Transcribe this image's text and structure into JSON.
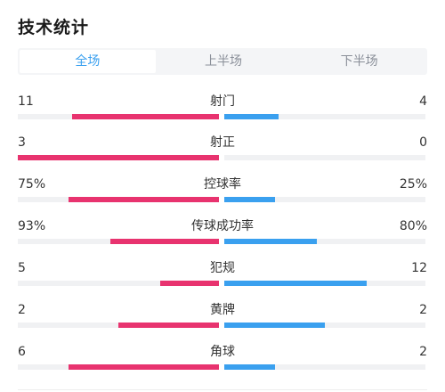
{
  "title": "技术统计",
  "tabs": [
    {
      "label": "全场",
      "active": true
    },
    {
      "label": "上半场",
      "active": false
    },
    {
      "label": "下半场",
      "active": false
    }
  ],
  "colors": {
    "home": "#e8336f",
    "away": "#3aa0ef",
    "track": "#f0f1f3",
    "active_tab": "#3aa0ef"
  },
  "stats": [
    {
      "label": "射门",
      "home": "11",
      "away": "4",
      "home_share": 0.73,
      "away_share": 0.27
    },
    {
      "label": "射正",
      "home": "3",
      "away": "0",
      "home_share": 1.0,
      "away_share": 0.0
    },
    {
      "label": "控球率",
      "home": "75%",
      "away": "25%",
      "home_share": 0.75,
      "away_share": 0.25
    },
    {
      "label": "传球成功率",
      "home": "93%",
      "away": "80%",
      "home_share": 0.54,
      "away_share": 0.46
    },
    {
      "label": "犯规",
      "home": "5",
      "away": "12",
      "home_share": 0.29,
      "away_share": 0.71
    },
    {
      "label": "黄牌",
      "home": "2",
      "away": "2",
      "home_share": 0.5,
      "away_share": 0.5
    },
    {
      "label": "角球",
      "home": "6",
      "away": "2",
      "home_share": 0.75,
      "away_share": 0.25
    }
  ]
}
